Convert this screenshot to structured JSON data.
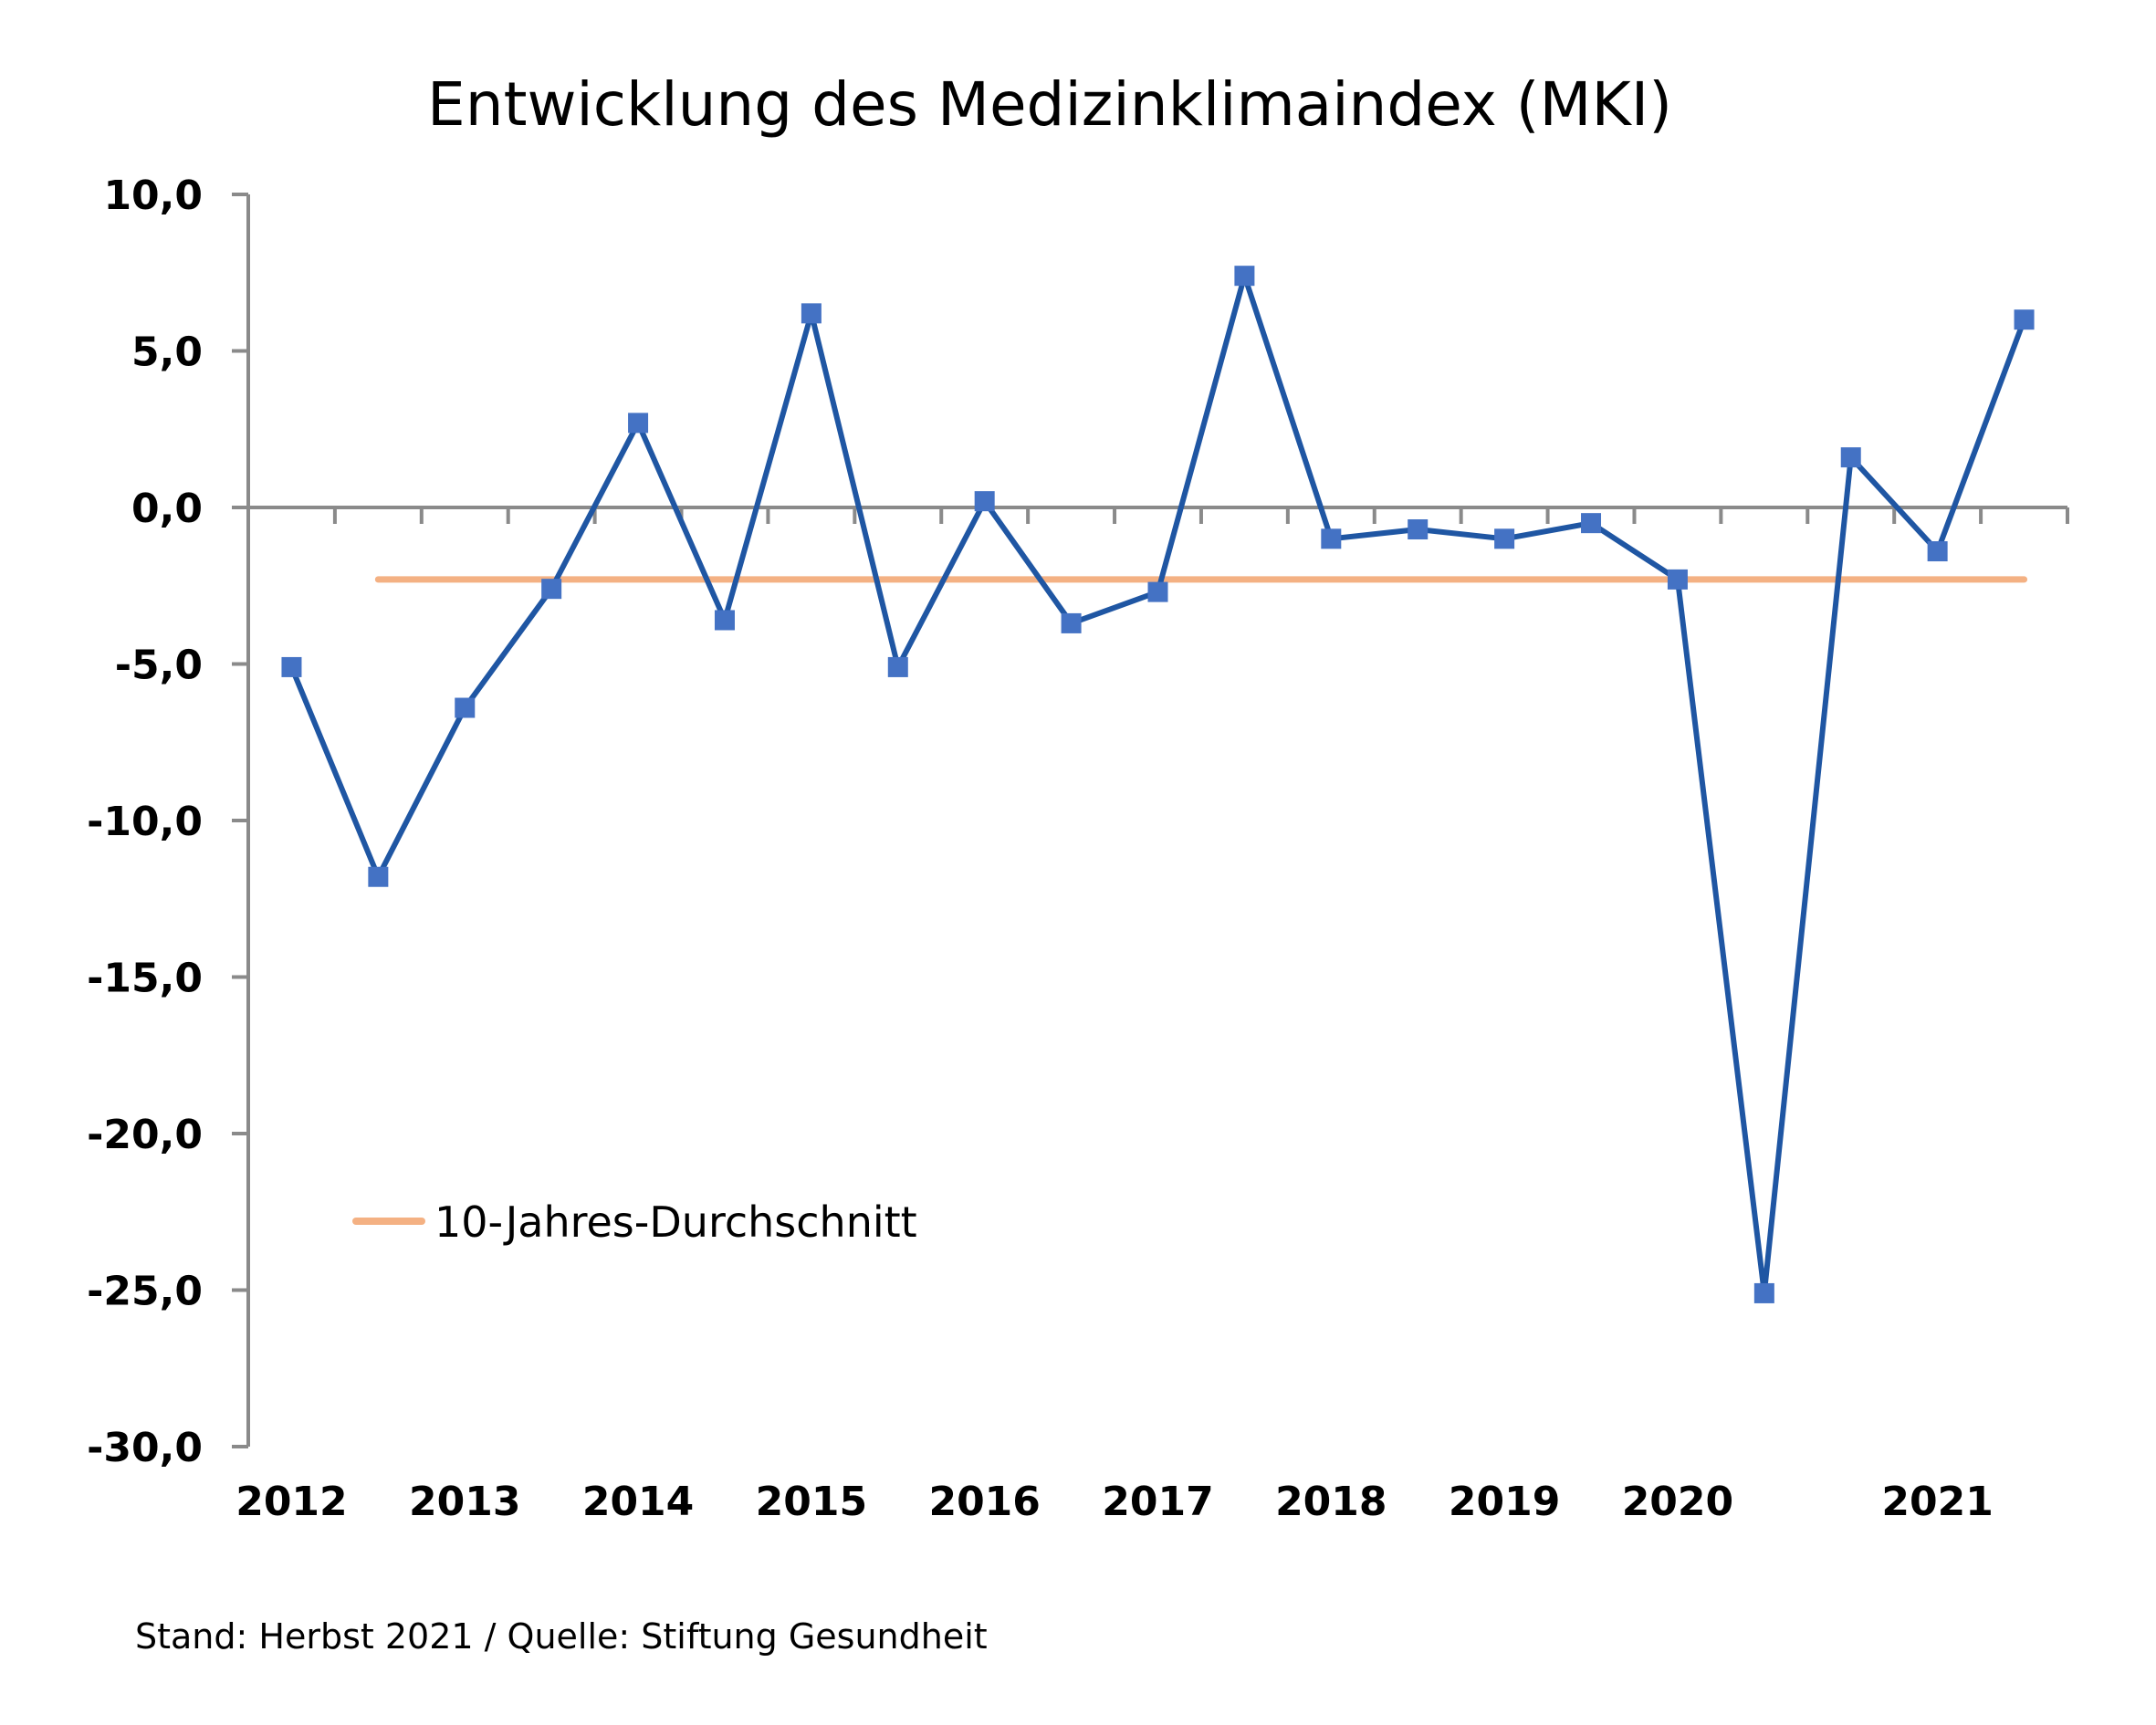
{
  "chart_data": {
    "type": "line",
    "title": "Entwicklung des Medizinklimaindex (MKI)",
    "xlabel": "",
    "ylabel": "",
    "ylim": [
      -30,
      10
    ],
    "y_ticks": [
      10,
      5,
      0,
      -5,
      -10,
      -15,
      -20,
      -25,
      -30
    ],
    "y_tick_labels": [
      "10,0",
      "5,0",
      "0,0",
      "-5,0",
      "-10,0",
      "-15,0",
      "-20,0",
      "-25,0",
      "-30,0"
    ],
    "x_tick_labels": [
      {
        "index": 0,
        "label": "2012"
      },
      {
        "index": 2,
        "label": "2013"
      },
      {
        "index": 4,
        "label": "2014"
      },
      {
        "index": 6,
        "label": "2015"
      },
      {
        "index": 8,
        "label": "2016"
      },
      {
        "index": 10,
        "label": "2017"
      },
      {
        "index": 12,
        "label": "2018"
      },
      {
        "index": 14,
        "label": "2019"
      },
      {
        "index": 16,
        "label": "2020"
      },
      {
        "index": 19,
        "label": "2021"
      }
    ],
    "grid": false,
    "series": [
      {
        "name": "MKI",
        "color": "#1f56a3",
        "marker_color": "#4472c4",
        "values": [
          -5.1,
          -11.8,
          -6.4,
          -2.6,
          2.7,
          -3.6,
          6.2,
          -5.1,
          0.2,
          -3.7,
          -2.7,
          7.4,
          -1.0,
          -0.7,
          -1.0,
          -0.5,
          -2.3,
          -25.1,
          1.6,
          -1.4,
          6.0
        ]
      },
      {
        "name": "10-Jahres-Durchschnitt",
        "color": "#f4b183",
        "constant": -2.3,
        "range_index": [
          1,
          20
        ]
      }
    ],
    "legend": {
      "position": "bottom-left",
      "label": "10-Jahres-Durchschnitt"
    },
    "footer": "Stand: Herbst 2021 / Quelle: Stiftung Gesundheit"
  }
}
